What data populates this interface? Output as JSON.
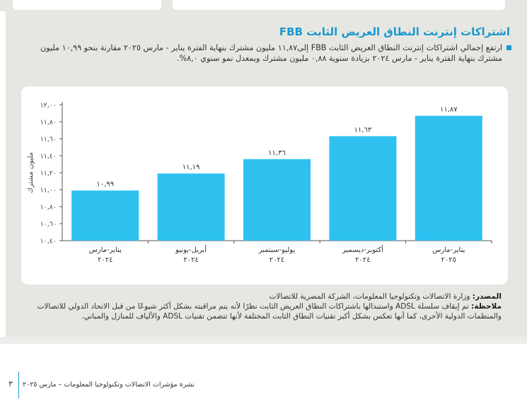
{
  "header": {
    "title": "اشتراكات إنترنت النطاق العريض الثابت FBB",
    "bullet": "ارتفع إجمالي اشتراكات إنترنت النطاق العريض الثابت FBB إلى١١,٨٧ مليون مشترك بنهاية الفترة يناير - مارس ٢٠٢٥ مقارنة بنحو ١٠,٩٩ مليون مشترك بنهاية الفترة يناير - مارس ٢٠٢٤ بزيادة سنوية ٠,٨٨ مليون مشترك وبمعدل نمو سنوي ٨,٠%."
  },
  "chart_data": {
    "type": "bar",
    "categories": [
      [
        "يناير-مارس",
        "٢٠٢٤"
      ],
      [
        "أبريل-يونيو",
        "٢٠٢٤"
      ],
      [
        "يوليو-سبتمبر",
        "٢٠٢٤"
      ],
      [
        "أكتوبر-ديسمبر",
        "٢٠٢٤"
      ],
      [
        "يناير-مارس",
        "٢٠٢٥"
      ]
    ],
    "values": [
      10.99,
      11.19,
      11.36,
      11.63,
      11.87
    ],
    "data_labels": [
      "١٠,٩٩",
      "١١,١٩",
      "١١,٣٦",
      "١١,٦٣",
      "١١,٨٧"
    ],
    "ylabel": "مليون مشترك",
    "ylim": [
      10.4,
      12.0
    ],
    "yticks": [
      10.4,
      10.6,
      10.8,
      11.0,
      11.2,
      11.4,
      11.6,
      11.8,
      12.0
    ],
    "ytick_labels": [
      "١٠,٤٠",
      "١٠,٦٠",
      "١٠,٨٠",
      "١١,٠٠",
      "١١,٢٠",
      "١١,٤٠",
      "١١,٦٠",
      "١١,٨٠",
      "١٢,٠٠"
    ],
    "grid": false,
    "bar_color": "#2ec1f0"
  },
  "notes": {
    "source_label": "المصدر:",
    "source_text": " وزارة الاتصالات وتكنولوجيا المعلومات، الشركة المصرية للاتصالات",
    "note_label": "ملاحظة:",
    "note_text": " تم إيقاف سلسلة ADSL واستبدالها باشتراكات النطاق العريض الثابت نظرًا لأنه يتم مراقبته بشكل أكثر شيوعًا من قبل الاتحاد الدولي للاتصالات والمنظمات الدولية الأخرى، كما أنها تعكس بشكل أكبر تقنيات النطاق الثابت المختلفة لأنها تتضمن تقنيات ADSL والألياف للمنازل والمباني."
  },
  "footer": {
    "text": "نشرة مؤشرات الاتصالات وتكنولوجيا المعلومات – مارس ٢٠٢٥",
    "page_number": "٣"
  }
}
